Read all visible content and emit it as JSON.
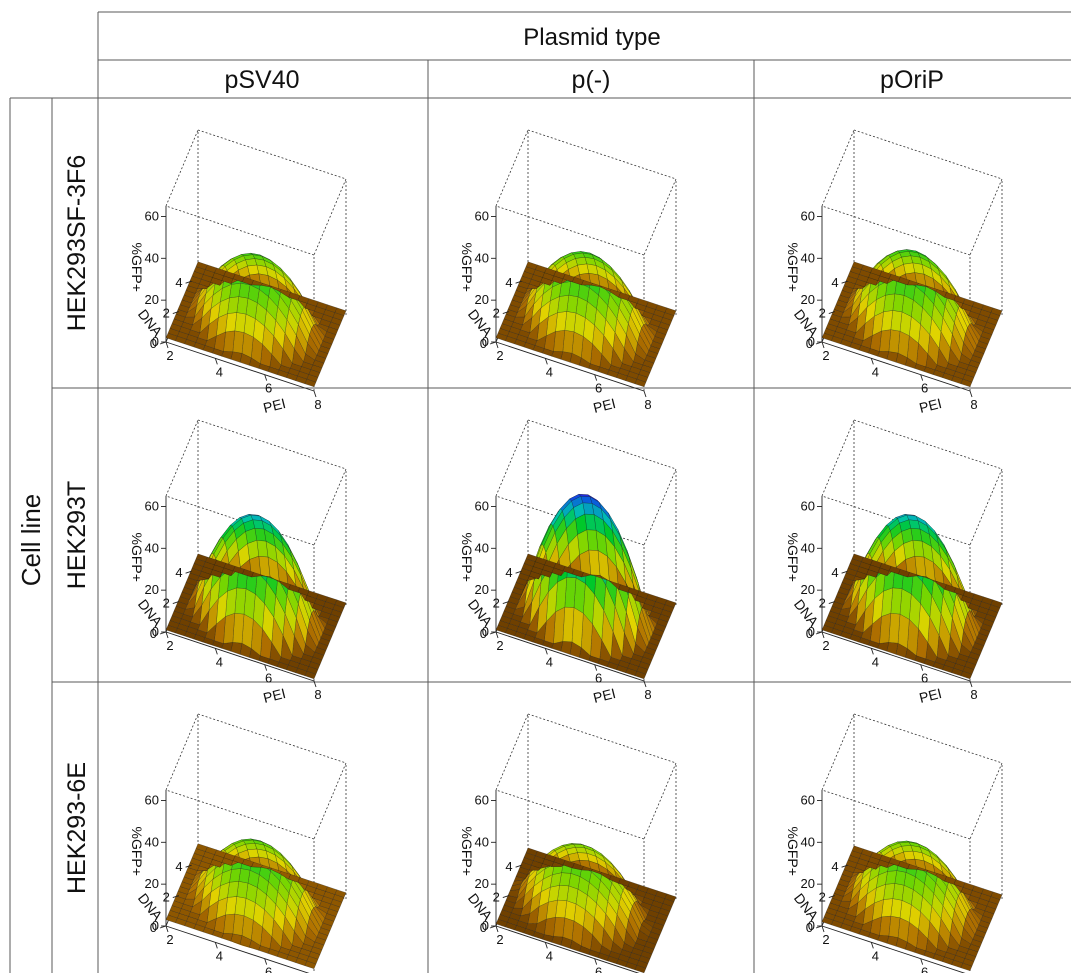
{
  "header": {
    "group_label": "Plasmid type",
    "row_group_label": "Cell line",
    "columns": [
      "pSV40",
      "p(-)",
      "pOriP"
    ],
    "rows": [
      "HEK293SF-3F6",
      "HEK293T",
      "HEK293-6E"
    ]
  },
  "chart_data": {
    "type": "surface",
    "layout": "3x3 grid of 3D response surfaces with contour projections",
    "x_axis": {
      "label": "PEI",
      "range": [
        2,
        8
      ],
      "ticks": [
        "2",
        "4",
        "6",
        "8"
      ]
    },
    "y_axis": {
      "label": "DNA",
      "range": [
        0,
        5
      ],
      "ticks": [
        "0",
        "2",
        "4"
      ]
    },
    "z_axis": {
      "label": "%GFP+",
      "range": [
        0,
        65
      ],
      "ticks": [
        "0",
        "20",
        "40",
        "60"
      ]
    },
    "panels": [
      {
        "row": "HEK293SF-3F6",
        "col": "pSV40",
        "peak_pct_gfp": 33,
        "peak_pei": 5.0,
        "peak_dna": 2.5,
        "base_pct_gfp": 2
      },
      {
        "row": "HEK293SF-3F6",
        "col": "p(-)",
        "peak_pct_gfp": 34,
        "peak_pei": 5.0,
        "peak_dna": 2.5,
        "base_pct_gfp": 2
      },
      {
        "row": "HEK293SF-3F6",
        "col": "pOriP",
        "peak_pct_gfp": 35,
        "peak_pei": 5.0,
        "peak_dna": 2.5,
        "base_pct_gfp": 2
      },
      {
        "row": "HEK293T",
        "col": "pSV40",
        "peak_pct_gfp": 48,
        "peak_pei": 5.0,
        "peak_dna": 2.5,
        "base_pct_gfp": 1
      },
      {
        "row": "HEK293T",
        "col": "p(-)",
        "peak_pct_gfp": 58,
        "peak_pei": 5.0,
        "peak_dna": 2.5,
        "base_pct_gfp": 1
      },
      {
        "row": "HEK293T",
        "col": "pOriP",
        "peak_pct_gfp": 48,
        "peak_pei": 5.0,
        "peak_dna": 2.5,
        "base_pct_gfp": 1
      },
      {
        "row": "HEK293-6E",
        "col": "pSV40",
        "peak_pct_gfp": 32,
        "peak_pei": 5.0,
        "peak_dna": 2.5,
        "base_pct_gfp": 3
      },
      {
        "row": "HEK293-6E",
        "col": "p(-)",
        "peak_pct_gfp": 29,
        "peak_pei": 4.8,
        "peak_dna": 2.5,
        "base_pct_gfp": 1
      },
      {
        "row": "HEK293-6E",
        "col": "pOriP",
        "peak_pct_gfp": 31,
        "peak_pei": 5.0,
        "peak_dna": 2.5,
        "base_pct_gfp": 2
      }
    ]
  }
}
